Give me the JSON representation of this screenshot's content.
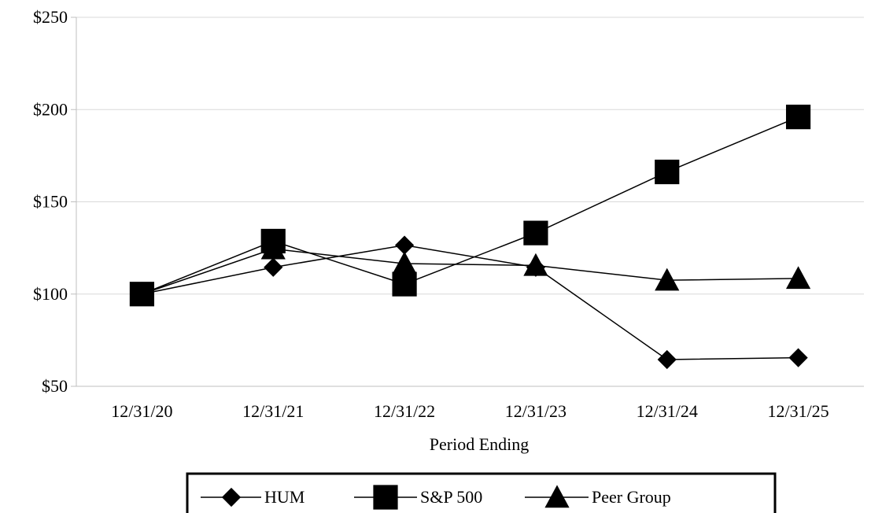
{
  "chart_data": {
    "type": "line",
    "title": "",
    "xlabel": "Period Ending",
    "ylabel": "",
    "categories": [
      "12/31/20",
      "12/31/21",
      "12/31/22",
      "12/31/23",
      "12/31/24",
      "12/31/25"
    ],
    "ylim": [
      50,
      250
    ],
    "yticks": [
      50,
      100,
      150,
      200,
      250
    ],
    "ytick_labels": [
      "$50",
      "$100",
      "$150",
      "$200",
      "$250"
    ],
    "grid": "horizontal",
    "legend_position": "bottom-center",
    "series": [
      {
        "name": "HUM",
        "marker": "diamond",
        "color": "#000000",
        "values": [
          100,
          114.5,
          126.5,
          114.5,
          64.5,
          65.5
        ]
      },
      {
        "name": "S&P 500",
        "marker": "square",
        "color": "#000000",
        "values": [
          100,
          128.7,
          105.4,
          133.1,
          166.2,
          196.0
        ]
      },
      {
        "name": "Peer Group",
        "marker": "triangle",
        "color": "#000000",
        "values": [
          100,
          124.5,
          116.5,
          115.5,
          107.5,
          108.5
        ]
      }
    ]
  }
}
